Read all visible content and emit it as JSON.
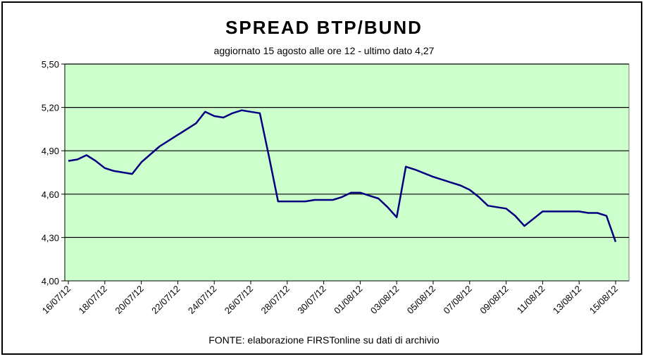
{
  "chart_data": {
    "type": "line",
    "title": "SPREAD  BTP/BUND",
    "subtitle": "aggiornato 15 agosto alle ore 12  - ultimo dato 4,27",
    "source": "FONTE: elaborazione FIRSTonline su dati di archivio",
    "ylim": [
      4.0,
      5.5
    ],
    "y_ticks": [
      "4,00",
      "4,30",
      "4,60",
      "4,90",
      "5,20",
      "5,50"
    ],
    "x_ticks": [
      "16/07/12",
      "18/07/12",
      "20/07/12",
      "22/07/12",
      "24/07/12",
      "26/07/12",
      "28/07/12",
      "30/07/12",
      "01/08/12",
      "03/08/12",
      "05/08/12",
      "07/08/12",
      "09/08/12",
      "11/08/12",
      "13/08/12",
      "15/08/12"
    ],
    "grid": true,
    "colors": {
      "plot_background": "#ccffcc",
      "line": "#000080",
      "grid": "#000000"
    },
    "series": [
      {
        "x": [
          "16/07/12",
          "16/07/12",
          "17/07/12",
          "17/07/12",
          "18/07/12",
          "18/07/12",
          "19/07/12",
          "19/07/12",
          "20/07/12",
          "21/07/12",
          "22/07/12",
          "23/07/12",
          "23/07/12",
          "24/07/12",
          "24/07/12",
          "25/07/12",
          "25/07/12",
          "26/07/12",
          "26/07/12",
          "27/07/12",
          "27/07/12",
          "28/07/12",
          "29/07/12",
          "29/07/12",
          "30/07/12",
          "30/07/12",
          "31/07/12",
          "31/07/12",
          "01/08/12",
          "01/08/12",
          "02/08/12",
          "02/08/12",
          "03/08/12",
          "03/08/12",
          "04/08/12",
          "05/08/12",
          "06/08/12",
          "06/08/12",
          "07/08/12",
          "07/08/12",
          "08/08/12",
          "08/08/12",
          "09/08/12",
          "09/08/12",
          "10/08/12",
          "11/08/12",
          "12/08/12",
          "13/08/12",
          "13/08/12",
          "14/08/12",
          "14/08/12",
          "15/08/12"
        ],
        "values": [
          4.83,
          4.84,
          4.87,
          4.83,
          4.78,
          4.76,
          4.75,
          4.74,
          4.82,
          4.93,
          5.01,
          5.09,
          5.17,
          5.14,
          5.13,
          5.16,
          5.18,
          5.17,
          5.16,
          4.86,
          4.55,
          4.55,
          4.55,
          4.56,
          4.56,
          4.56,
          4.58,
          4.61,
          4.61,
          4.59,
          4.57,
          4.51,
          4.44,
          4.79,
          4.77,
          4.72,
          4.68,
          4.66,
          4.63,
          4.58,
          4.52,
          4.51,
          4.5,
          4.45,
          4.38,
          4.48,
          4.48,
          4.48,
          4.47,
          4.47,
          4.45,
          4.27
        ]
      }
    ]
  }
}
